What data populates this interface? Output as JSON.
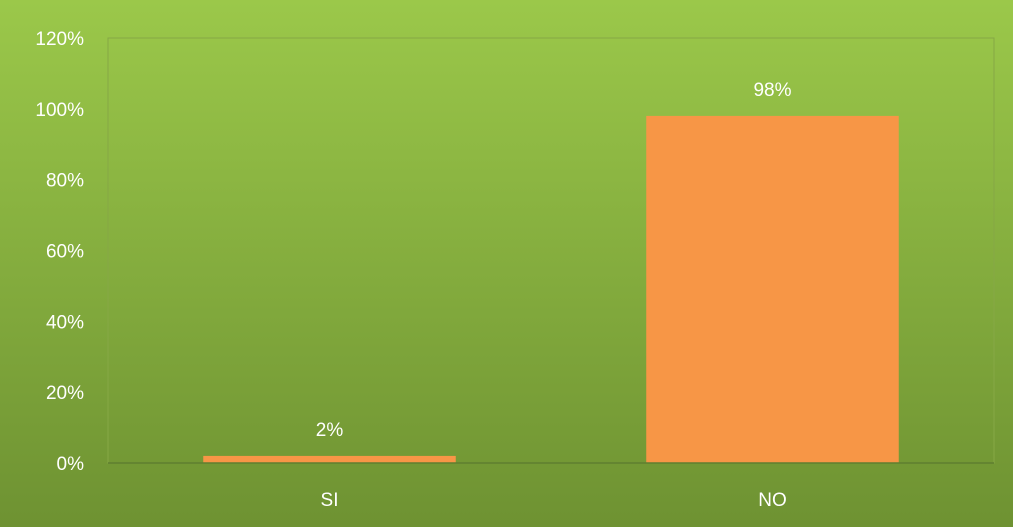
{
  "chart_data": {
    "type": "bar",
    "categories": [
      "SI",
      "NO"
    ],
    "values": [
      2,
      98
    ],
    "data_labels": [
      "2%",
      "98%"
    ],
    "title": "",
    "xlabel": "",
    "ylabel": "",
    "ylim": [
      0,
      120
    ],
    "yticks": [
      0,
      20,
      40,
      60,
      80,
      100,
      120
    ],
    "ytick_labels": [
      "0%",
      "20%",
      "40%",
      "60%",
      "80%",
      "100%",
      "120%"
    ],
    "grid": false,
    "legend": "none"
  },
  "colors": {
    "bar": "#f79646",
    "background_top": "#9bc84a",
    "background_bottom": "#6e9232",
    "axis": "#5f7f30",
    "text": "#ffffff"
  }
}
